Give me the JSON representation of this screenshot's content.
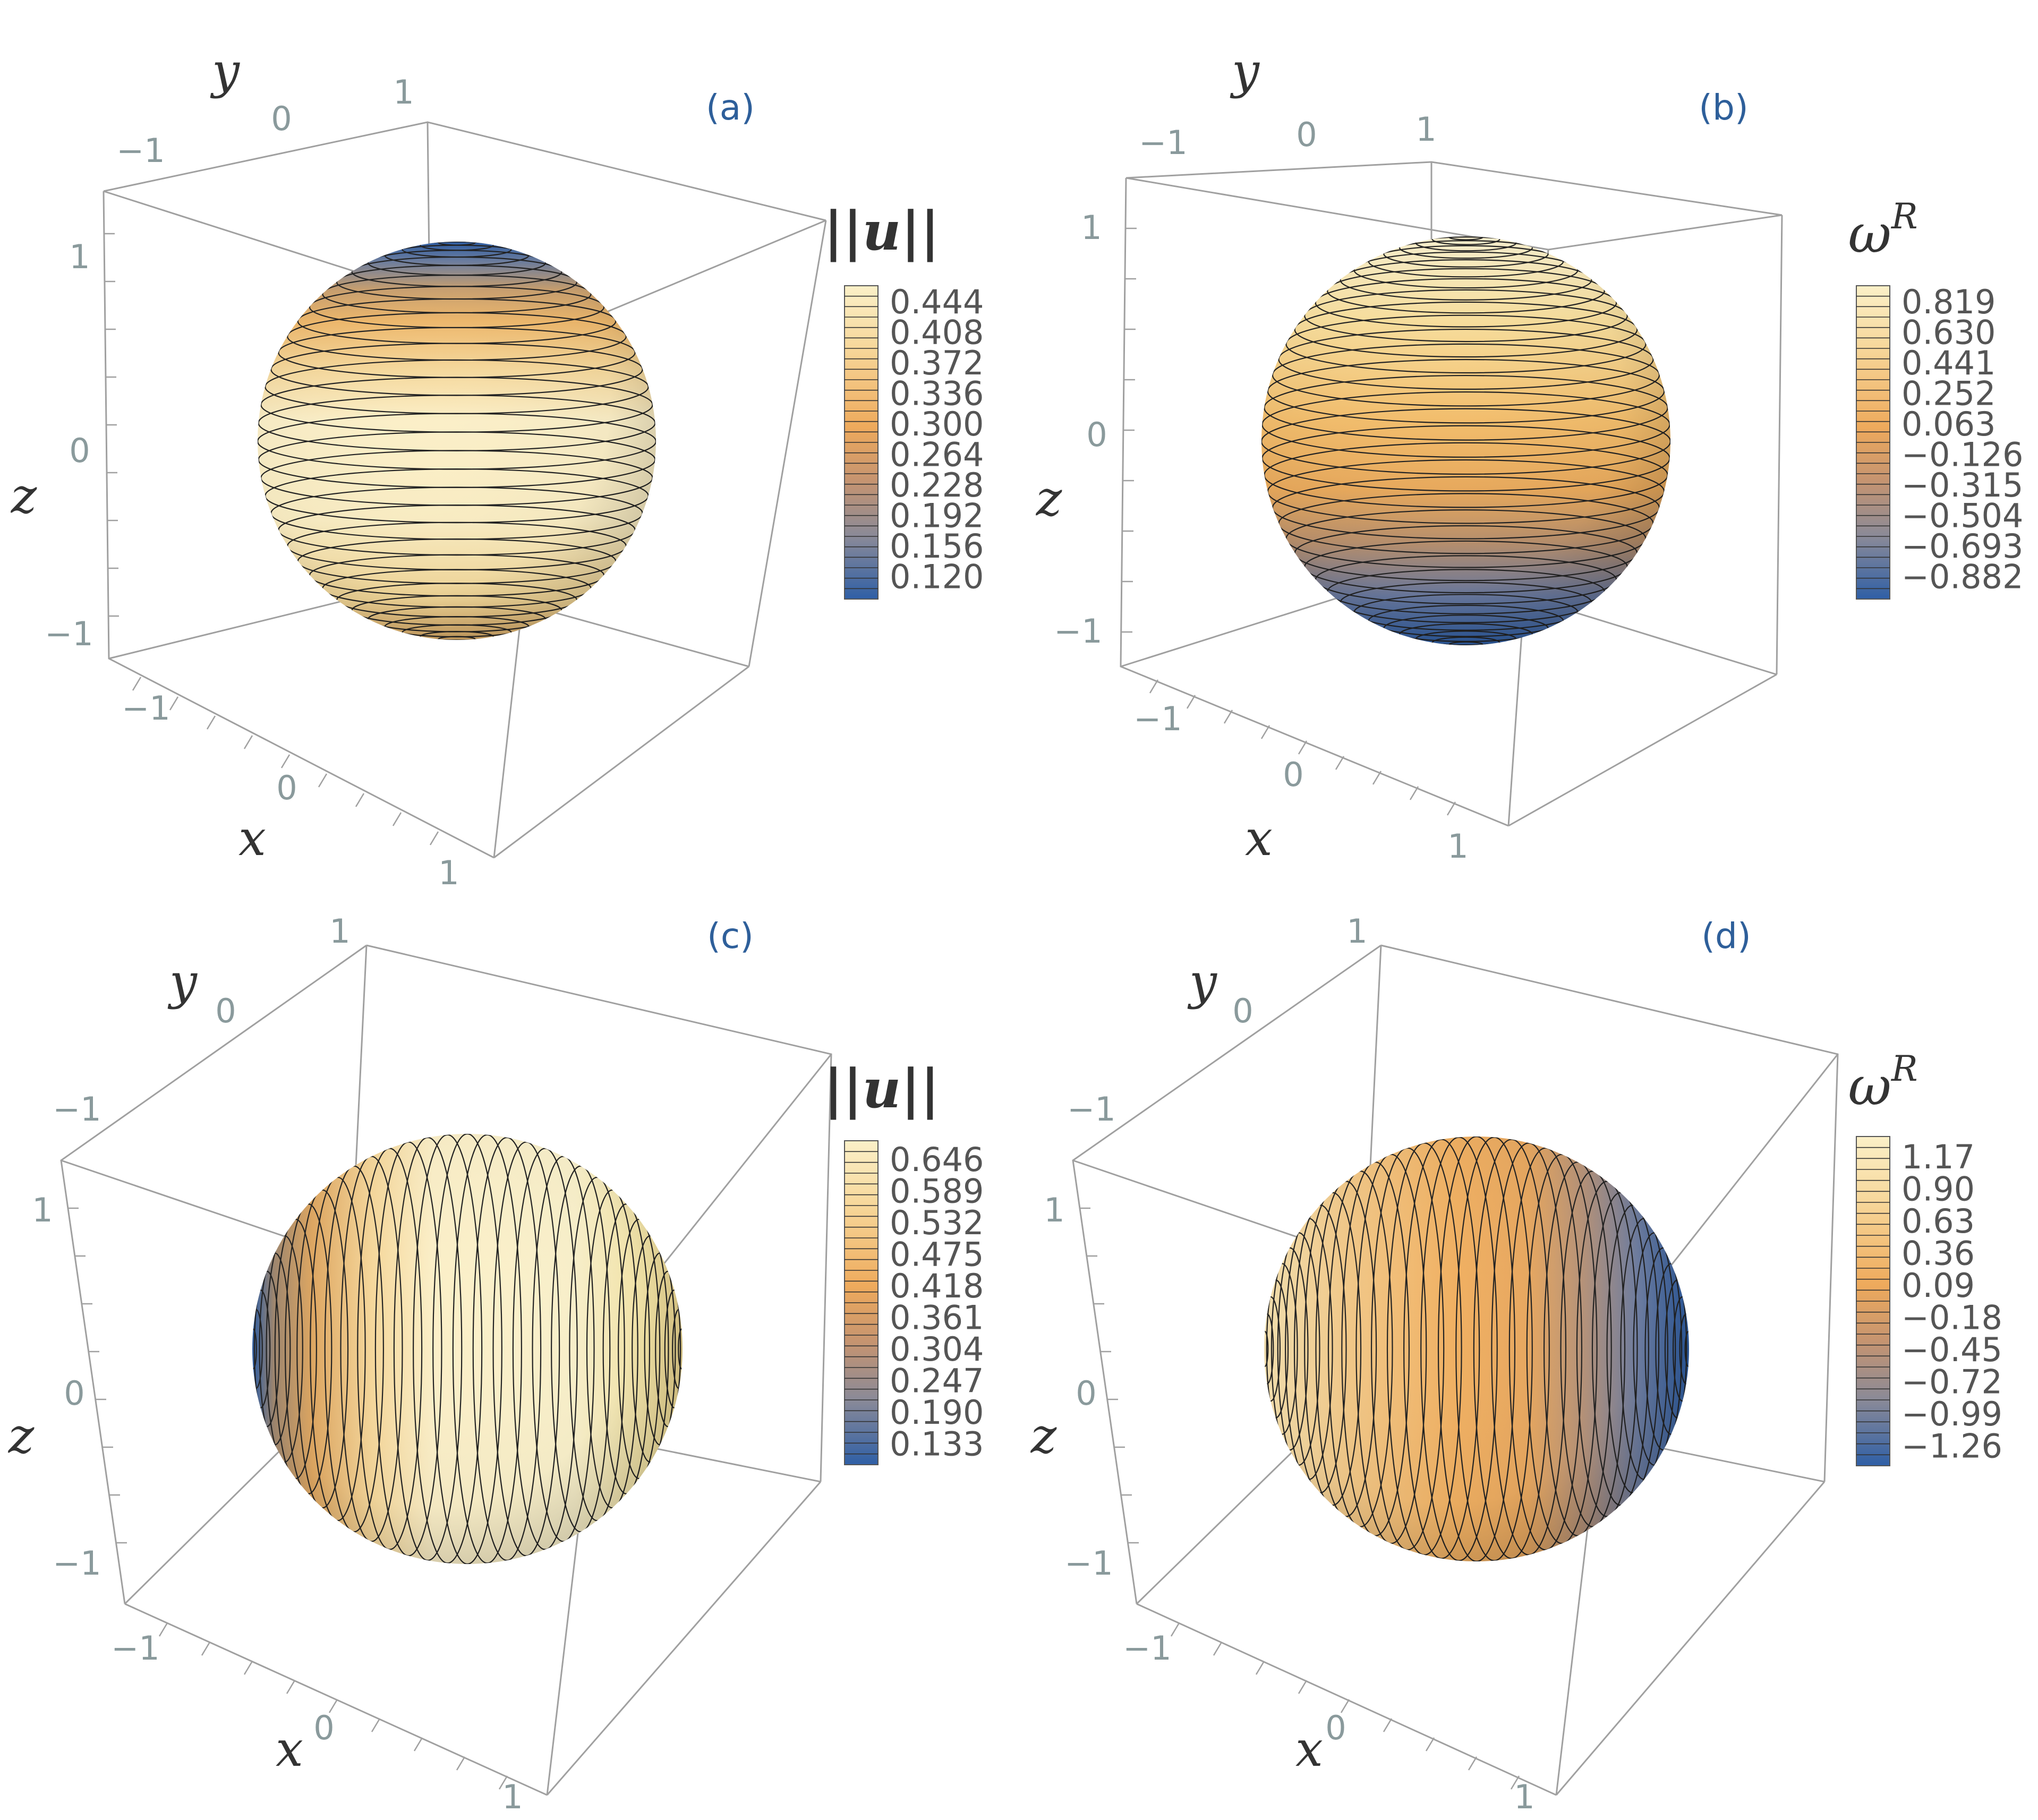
{
  "panels": [
    {
      "label": "(a)",
      "axis_labels": {
        "x": "x",
        "y": "y",
        "z": "z"
      },
      "x_ticks": [
        "−1",
        "0",
        "1"
      ],
      "y_ticks": [
        "−1",
        "0",
        "1"
      ],
      "z_ticks": [
        "1",
        "0",
        "−1"
      ],
      "colorbar": {
        "title": "|u|",
        "ticks": [
          "0.444",
          "0.408",
          "0.372",
          "0.336",
          "0.300",
          "0.264",
          "0.228",
          "0.192",
          "0.156",
          "0.120"
        ]
      }
    },
    {
      "label": "(b)",
      "axis_labels": {
        "x": "x",
        "y": "y",
        "z": "z"
      },
      "x_ticks": [
        "−1",
        "0",
        "1"
      ],
      "y_ticks": [
        "−1",
        "0",
        "1"
      ],
      "z_ticks": [
        "1",
        "0",
        "−1"
      ],
      "colorbar": {
        "title": "ω",
        "title_sup": "R",
        "ticks": [
          "0.819",
          "0.630",
          "0.441",
          "0.252",
          "0.063",
          "−0.126",
          "−0.315",
          "−0.504",
          "−0.693",
          "−0.882"
        ]
      }
    },
    {
      "label": "(c)",
      "axis_labels": {
        "x": "x",
        "y": "y",
        "z": "z"
      },
      "x_ticks": [
        "−1",
        "0",
        "1"
      ],
      "y_ticks": [
        "−1",
        "0",
        "1"
      ],
      "z_ticks": [
        "1",
        "0",
        "−1"
      ],
      "colorbar": {
        "title": "|u|",
        "ticks": [
          "0.646",
          "0.589",
          "0.532",
          "0.475",
          "0.418",
          "0.361",
          "0.304",
          "0.247",
          "0.190",
          "0.133"
        ]
      }
    },
    {
      "label": "(d)",
      "axis_labels": {
        "x": "x",
        "y": "y",
        "z": "z"
      },
      "x_ticks": [
        "−1",
        "0",
        "1"
      ],
      "y_ticks": [
        "−1",
        "0",
        "1"
      ],
      "z_ticks": [
        "1",
        "0",
        "−1"
      ],
      "colorbar": {
        "title": "ω",
        "title_sup": "R",
        "ticks": [
          "1.17",
          "0.90",
          "0.63",
          "0.36",
          "0.09",
          "−0.18",
          "−0.45",
          "−0.72",
          "−0.99",
          "−1.26"
        ]
      }
    }
  ],
  "colors": {
    "high": "#fbf0c8",
    "mid": "#f0b060",
    "low": "#2f5fa6",
    "contour": "#222222",
    "box": "#a0a0a0"
  }
}
